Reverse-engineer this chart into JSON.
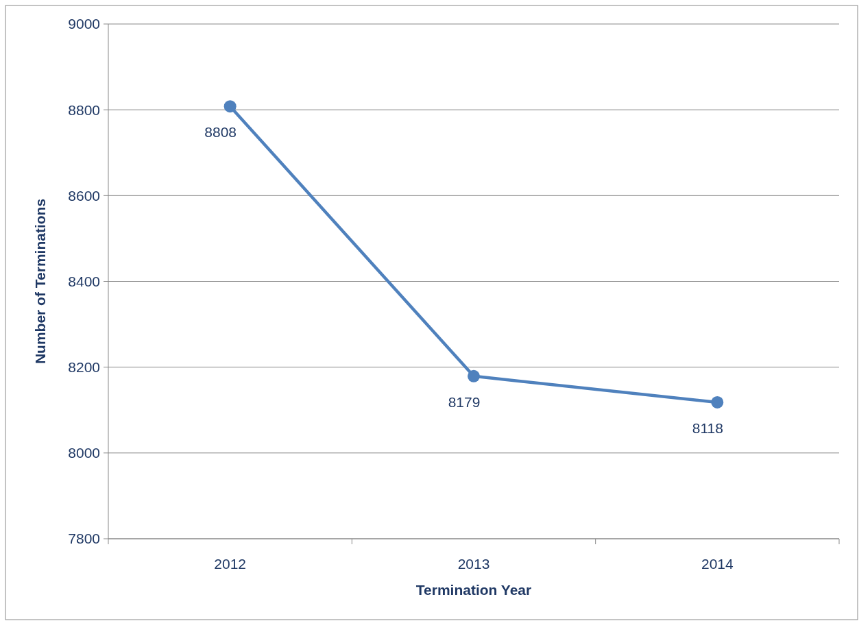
{
  "chart_data": {
    "type": "line",
    "xlabel": "Termination Year",
    "ylabel": "Number of Terminations",
    "categories": [
      "2012",
      "2013",
      "2014"
    ],
    "series": [
      {
        "color": "#4f81bd",
        "values": [
          8808,
          8179,
          8118
        ]
      }
    ],
    "ylim": [
      7800,
      9000
    ],
    "yticks": [
      7800,
      8000,
      8200,
      8400,
      8600,
      8800,
      9000
    ],
    "grid": "y",
    "marker": "circle",
    "data_labels": true
  }
}
